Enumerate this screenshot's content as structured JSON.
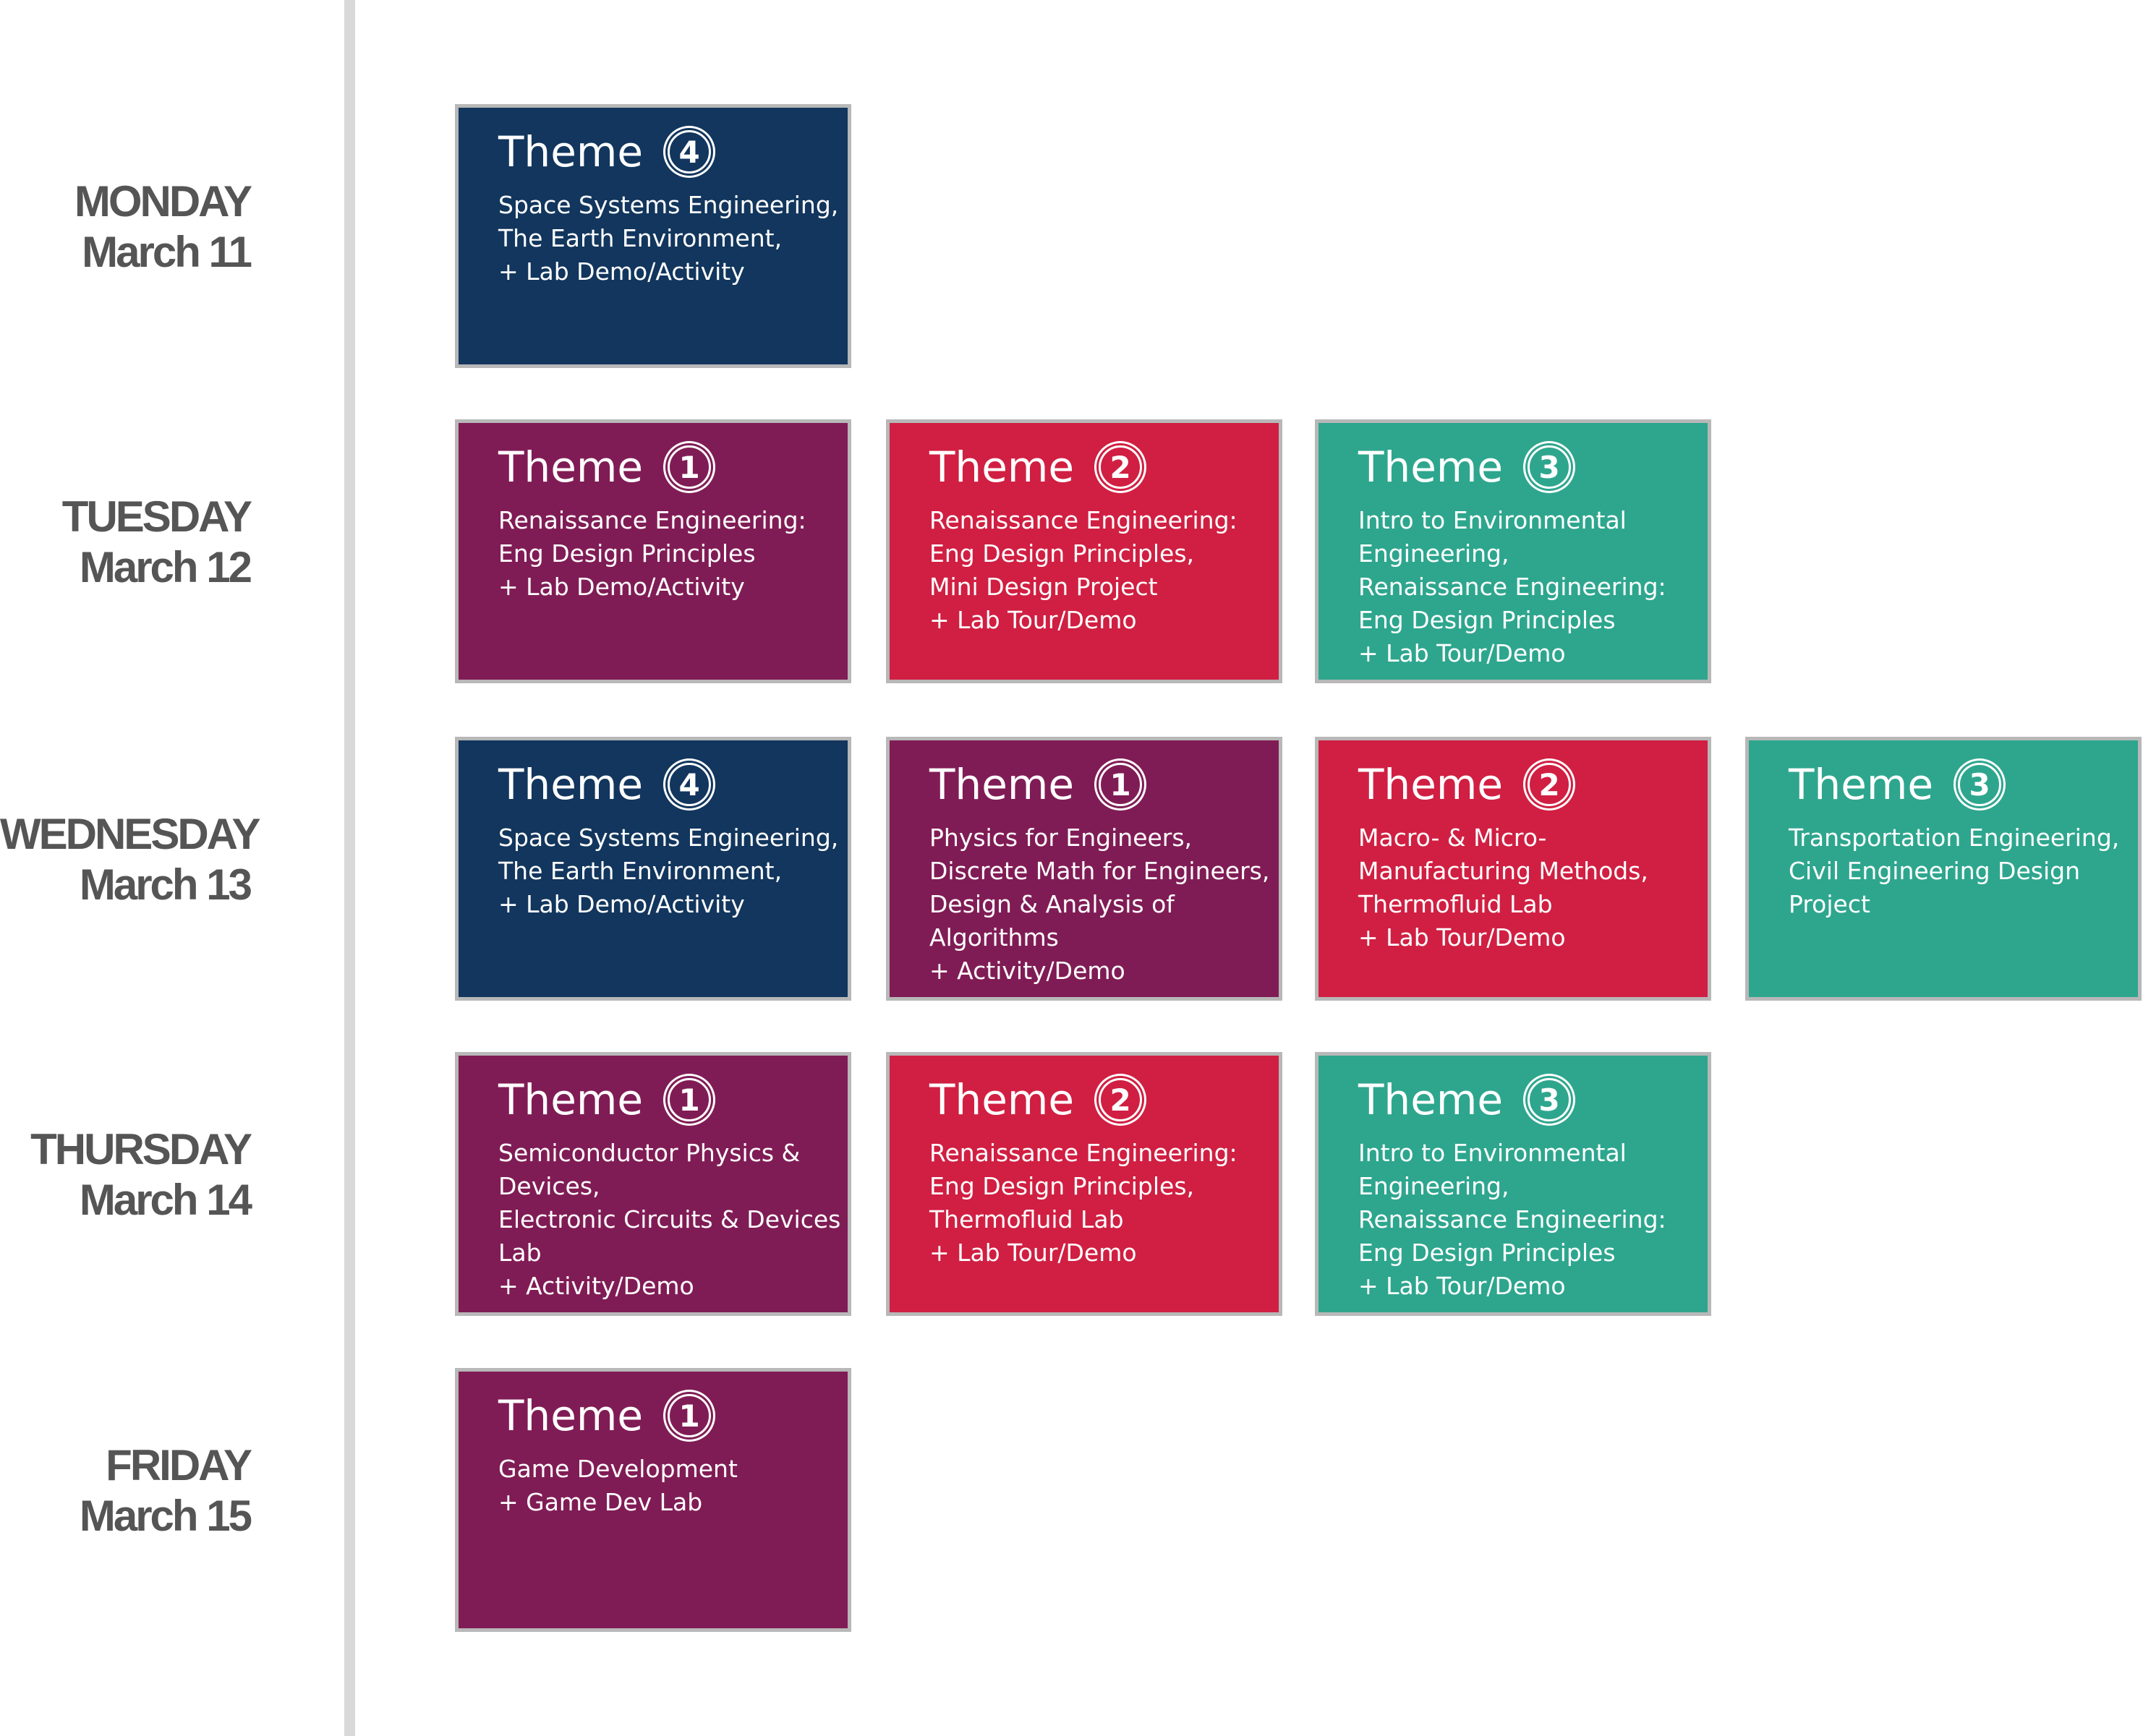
{
  "theme_colors": {
    "1": "#801c55",
    "2": "#d01f42",
    "3": "#2ea68e",
    "4": "#12365d"
  },
  "days": [
    {
      "day": "MONDAY",
      "date": "March 11",
      "sessions": [
        {
          "label": "Theme",
          "number": "4",
          "lines": [
            "Space Systems Engineering,",
            "The Earth Environment,",
            "+ Lab Demo/Activity"
          ]
        }
      ]
    },
    {
      "day": "TUESDAY",
      "date": "March 12",
      "sessions": [
        {
          "label": "Theme",
          "number": "1",
          "lines": [
            "Renaissance Engineering:",
            "Eng Design Principles",
            "+ Lab Demo/Activity"
          ]
        },
        {
          "label": "Theme",
          "number": "2",
          "lines": [
            "Renaissance Engineering:",
            "Eng Design Principles,",
            "Mini Design Project",
            "+ Lab Tour/Demo"
          ]
        },
        {
          "label": "Theme",
          "number": "3",
          "lines": [
            "Intro to Environmental",
            "Engineering,",
            "Renaissance Engineering:",
            "Eng Design Principles",
            "+ Lab Tour/Demo"
          ]
        }
      ]
    },
    {
      "day": "WEDNESDAY",
      "date": "March 13",
      "sessions": [
        {
          "label": "Theme",
          "number": "4",
          "lines": [
            "Space Systems Engineering,",
            "The Earth Environment,",
            "+ Lab Demo/Activity"
          ]
        },
        {
          "label": "Theme",
          "number": "1",
          "lines": [
            "Physics for Engineers,",
            "Discrete Math for Engineers,",
            "Design & Analysis of",
            "Algorithms",
            "+ Activity/Demo"
          ]
        },
        {
          "label": "Theme",
          "number": "2",
          "lines": [
            "Macro- & Micro-",
            "Manufacturing Methods,",
            "Thermofluid Lab",
            "+ Lab Tour/Demo"
          ]
        },
        {
          "label": "Theme",
          "number": "3",
          "lines": [
            "Transportation Engineering,",
            "Civil Engineering Design",
            "Project"
          ]
        }
      ]
    },
    {
      "day": "THURSDAY",
      "date": "March 14",
      "sessions": [
        {
          "label": "Theme",
          "number": "1",
          "lines": [
            "Semiconductor Physics &",
            "Devices,",
            "Electronic Circuits & Devices",
            "Lab",
            "+ Activity/Demo"
          ]
        },
        {
          "label": "Theme",
          "number": "2",
          "lines": [
            "Renaissance Engineering:",
            "Eng Design Principles,",
            "Thermofluid Lab",
            "+ Lab Tour/Demo"
          ]
        },
        {
          "label": "Theme",
          "number": "3",
          "lines": [
            "Intro to Environmental",
            "Engineering,",
            "Renaissance Engineering:",
            "Eng Design Principles",
            "+ Lab Tour/Demo"
          ]
        }
      ]
    },
    {
      "day": "FRIDAY",
      "date": "March 15",
      "sessions": [
        {
          "label": "Theme",
          "number": "1",
          "lines": [
            "Game Development",
            "+ Game Dev Lab"
          ]
        }
      ]
    }
  ]
}
